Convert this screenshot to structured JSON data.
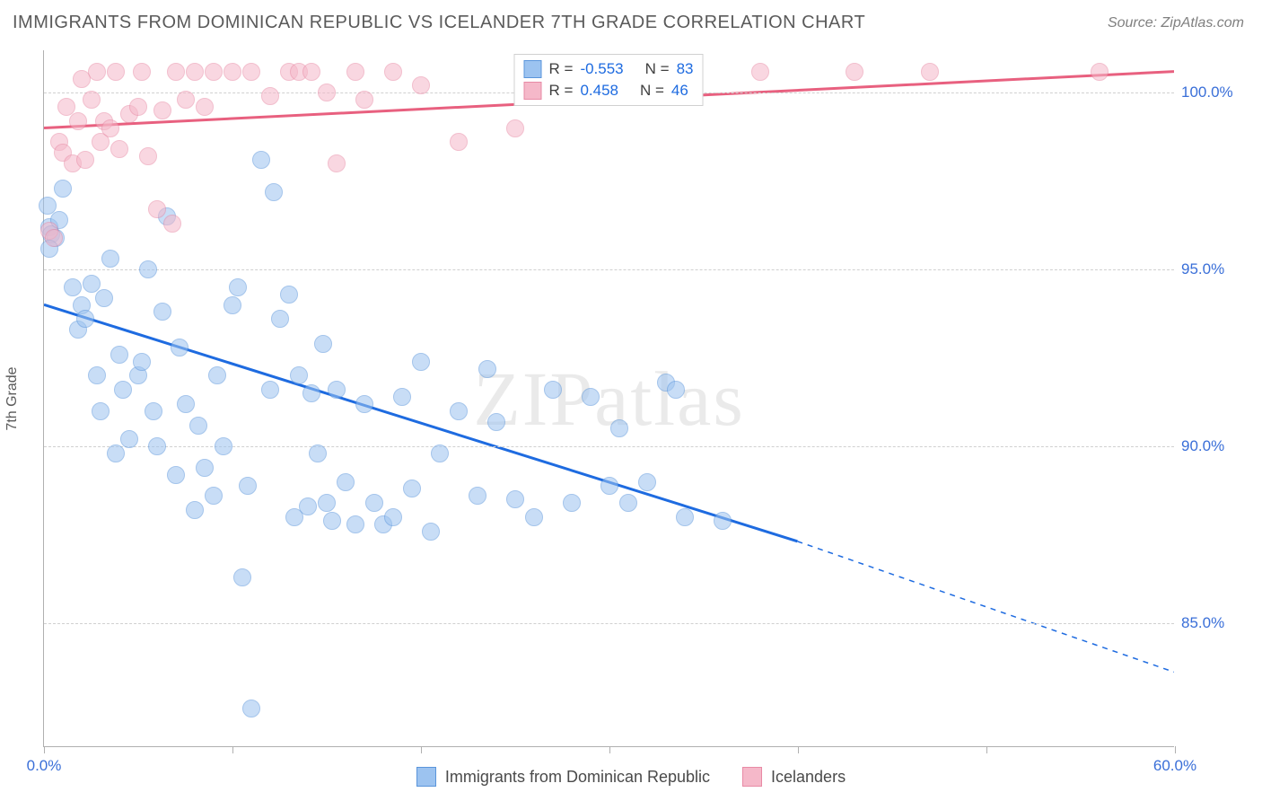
{
  "title": "IMMIGRANTS FROM DOMINICAN REPUBLIC VS ICELANDER 7TH GRADE CORRELATION CHART",
  "source": "Source: ZipAtlas.com",
  "watermark": "ZIPatlas",
  "y_axis_title": "7th Grade",
  "chart": {
    "type": "scatter",
    "background_color": "#ffffff",
    "grid_color": "#d0d0d0",
    "axis_color": "#b0b0b0",
    "xlim": [
      0,
      60
    ],
    "ylim": [
      81.5,
      101.2
    ],
    "xtick_positions": [
      0,
      10,
      20,
      30,
      40,
      50,
      60
    ],
    "xtick_labels_shown": {
      "0": "0.0%",
      "60": "60.0%"
    },
    "ytick_positions": [
      85,
      90,
      95,
      100
    ],
    "ytick_labels": {
      "85": "85.0%",
      "90": "90.0%",
      "95": "95.0%",
      "100": "100.0%"
    },
    "label_color": "#3a6fd8",
    "label_fontsize": 17,
    "point_radius": 10,
    "point_opacity": 0.55,
    "series": [
      {
        "name": "Immigrants from Dominican Republic",
        "fill_color": "#9cc3f0",
        "stroke_color": "#5a95db",
        "trend_color": "#1e6be0",
        "trend_width": 3,
        "R": "-0.553",
        "N": "83",
        "trend_line": {
          "x1": 0,
          "y1": 94.0,
          "x2_solid": 40,
          "y2_solid": 87.3,
          "x2_dash": 60,
          "y2_dash": 83.6
        },
        "points": [
          [
            0.2,
            96.8
          ],
          [
            0.3,
            96.2
          ],
          [
            0.4,
            96.0
          ],
          [
            0.6,
            95.9
          ],
          [
            0.8,
            96.4
          ],
          [
            0.3,
            95.6
          ],
          [
            1.0,
            97.3
          ],
          [
            1.5,
            94.5
          ],
          [
            1.8,
            93.3
          ],
          [
            2.0,
            94.0
          ],
          [
            2.2,
            93.6
          ],
          [
            2.5,
            94.6
          ],
          [
            2.8,
            92.0
          ],
          [
            3.0,
            91.0
          ],
          [
            3.2,
            94.2
          ],
          [
            3.5,
            95.3
          ],
          [
            3.8,
            89.8
          ],
          [
            4.0,
            92.6
          ],
          [
            4.2,
            91.6
          ],
          [
            4.5,
            90.2
          ],
          [
            5.0,
            92.0
          ],
          [
            5.2,
            92.4
          ],
          [
            5.5,
            95.0
          ],
          [
            5.8,
            91.0
          ],
          [
            6.0,
            90.0
          ],
          [
            6.3,
            93.8
          ],
          [
            6.5,
            96.5
          ],
          [
            7.0,
            89.2
          ],
          [
            7.2,
            92.8
          ],
          [
            7.5,
            91.2
          ],
          [
            8.0,
            88.2
          ],
          [
            8.2,
            90.6
          ],
          [
            8.5,
            89.4
          ],
          [
            9.0,
            88.6
          ],
          [
            9.2,
            92.0
          ],
          [
            9.5,
            90.0
          ],
          [
            10.0,
            94.0
          ],
          [
            10.3,
            94.5
          ],
          [
            10.5,
            86.3
          ],
          [
            11.0,
            82.6
          ],
          [
            11.5,
            98.1
          ],
          [
            12.0,
            91.6
          ],
          [
            12.2,
            97.2
          ],
          [
            12.5,
            93.6
          ],
          [
            13.0,
            94.3
          ],
          [
            13.3,
            88.0
          ],
          [
            13.5,
            92.0
          ],
          [
            14.0,
            88.3
          ],
          [
            14.2,
            91.5
          ],
          [
            14.5,
            89.8
          ],
          [
            15.0,
            88.4
          ],
          [
            15.3,
            87.9
          ],
          [
            15.5,
            91.6
          ],
          [
            16.0,
            89.0
          ],
          [
            16.5,
            87.8
          ],
          [
            17.0,
            91.2
          ],
          [
            17.5,
            88.4
          ],
          [
            18.0,
            87.8
          ],
          [
            18.5,
            88.0
          ],
          [
            19.0,
            91.4
          ],
          [
            19.5,
            88.8
          ],
          [
            20.0,
            92.4
          ],
          [
            20.5,
            87.6
          ],
          [
            21.0,
            89.8
          ],
          [
            22.0,
            91.0
          ],
          [
            23.0,
            88.6
          ],
          [
            23.5,
            92.2
          ],
          [
            24.0,
            90.7
          ],
          [
            25.0,
            88.5
          ],
          [
            26.0,
            88.0
          ],
          [
            27.0,
            91.6
          ],
          [
            28.0,
            88.4
          ],
          [
            29.0,
            91.4
          ],
          [
            30.0,
            88.9
          ],
          [
            30.5,
            90.5
          ],
          [
            31.0,
            88.4
          ],
          [
            32.0,
            89.0
          ],
          [
            33.0,
            91.8
          ],
          [
            33.5,
            91.6
          ],
          [
            34.0,
            88.0
          ],
          [
            36.0,
            87.9
          ],
          [
            14.8,
            92.9
          ],
          [
            10.8,
            88.9
          ]
        ]
      },
      {
        "name": "Icelanders",
        "fill_color": "#f5b8c9",
        "stroke_color": "#e88aa5",
        "trend_color": "#e8607f",
        "trend_width": 3,
        "R": "0.458",
        "N": "46",
        "trend_line": {
          "x1": 0,
          "y1": 99.0,
          "x2_solid": 60,
          "y2_solid": 100.6,
          "x2_dash": 60,
          "y2_dash": 100.6
        },
        "points": [
          [
            0.3,
            96.1
          ],
          [
            0.5,
            95.9
          ],
          [
            0.8,
            98.6
          ],
          [
            1.0,
            98.3
          ],
          [
            1.2,
            99.6
          ],
          [
            1.5,
            98.0
          ],
          [
            1.8,
            99.2
          ],
          [
            2.0,
            100.4
          ],
          [
            2.2,
            98.1
          ],
          [
            2.5,
            99.8
          ],
          [
            2.8,
            100.6
          ],
          [
            3.0,
            98.6
          ],
          [
            3.2,
            99.2
          ],
          [
            3.5,
            99.0
          ],
          [
            3.8,
            100.6
          ],
          [
            4.0,
            98.4
          ],
          [
            4.5,
            99.4
          ],
          [
            5.0,
            99.6
          ],
          [
            5.2,
            100.6
          ],
          [
            5.5,
            98.2
          ],
          [
            6.0,
            96.7
          ],
          [
            6.3,
            99.5
          ],
          [
            6.8,
            96.3
          ],
          [
            7.0,
            100.6
          ],
          [
            7.5,
            99.8
          ],
          [
            8.0,
            100.6
          ],
          [
            8.5,
            99.6
          ],
          [
            9.0,
            100.6
          ],
          [
            10.0,
            100.6
          ],
          [
            11.0,
            100.6
          ],
          [
            12.0,
            99.9
          ],
          [
            13.0,
            100.6
          ],
          [
            13.5,
            100.6
          ],
          [
            14.2,
            100.6
          ],
          [
            15.0,
            100.0
          ],
          [
            15.5,
            98.0
          ],
          [
            16.5,
            100.6
          ],
          [
            17.0,
            99.8
          ],
          [
            18.5,
            100.6
          ],
          [
            20.0,
            100.2
          ],
          [
            22.0,
            98.6
          ],
          [
            25.0,
            99.0
          ],
          [
            38.0,
            100.6
          ],
          [
            43.0,
            100.6
          ],
          [
            47.0,
            100.6
          ],
          [
            56.0,
            100.6
          ]
        ]
      }
    ]
  },
  "stats_box": {
    "rows": [
      {
        "swatch_fill": "#9cc3f0",
        "swatch_stroke": "#5a95db",
        "r_label": "R =",
        "r_val": "-0.553",
        "n_label": "N =",
        "n_val": "83"
      },
      {
        "swatch_fill": "#f5b8c9",
        "swatch_stroke": "#e88aa5",
        "r_label": "R =",
        "r_val": " 0.458",
        "n_label": "N =",
        "n_val": "46"
      }
    ]
  },
  "legend": {
    "items": [
      {
        "fill": "#9cc3f0",
        "stroke": "#5a95db",
        "label": "Immigrants from Dominican Republic"
      },
      {
        "fill": "#f5b8c9",
        "stroke": "#e88aa5",
        "label": "Icelanders"
      }
    ]
  }
}
